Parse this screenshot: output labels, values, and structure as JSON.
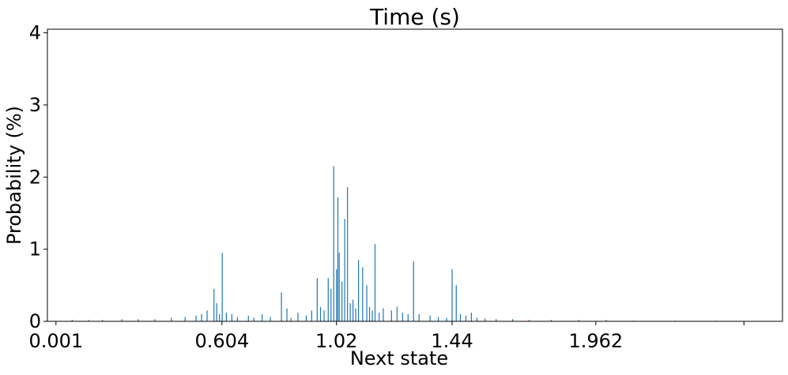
{
  "chart_data": {
    "type": "bar",
    "title": "Time (s)",
    "xlabel": "Next state",
    "ylabel": "Probability (%)",
    "ylim": [
      0,
      4.05
    ],
    "yticks": [
      0,
      1,
      2,
      3,
      4
    ],
    "x_tick_labels": [
      "0.001",
      "0.604",
      "1.02",
      "1.44",
      "1.962",
      ""
    ],
    "x_tick_positions": [
      0.001,
      0.604,
      1.02,
      1.44,
      1.962,
      2.5
    ],
    "xlim": [
      -0.03,
      2.64
    ],
    "bar_color": "#1f77b4",
    "grid": false,
    "legend": "none",
    "series": [
      {
        "x": [
          0.06,
          0.12,
          0.17,
          0.24,
          0.3,
          0.36,
          0.42,
          0.47,
          0.51,
          0.53,
          0.55,
          0.575,
          0.585,
          0.595,
          0.605,
          0.62,
          0.64,
          0.66,
          0.7,
          0.72,
          0.75,
          0.78,
          0.82,
          0.84,
          0.855,
          0.88,
          0.91,
          0.93,
          0.95,
          0.962,
          0.975,
          0.99,
          1.0,
          1.01,
          1.02,
          1.025,
          1.03,
          1.04,
          1.05,
          1.06,
          1.07,
          1.08,
          1.09,
          1.1,
          1.115,
          1.13,
          1.14,
          1.15,
          1.16,
          1.175,
          1.19,
          1.22,
          1.24,
          1.26,
          1.28,
          1.3,
          1.32,
          1.36,
          1.39,
          1.42,
          1.44,
          1.455,
          1.47,
          1.49,
          1.51,
          1.53,
          1.56,
          1.6,
          1.66,
          1.72,
          1.8,
          1.9,
          2.0,
          2.1,
          2.25,
          2.4
        ],
        "values": [
          0.02,
          0.02,
          0.02,
          0.03,
          0.03,
          0.03,
          0.05,
          0.06,
          0.08,
          0.1,
          0.15,
          0.45,
          0.25,
          0.1,
          0.95,
          0.12,
          0.1,
          0.06,
          0.08,
          0.05,
          0.1,
          0.06,
          0.4,
          0.18,
          0.05,
          0.12,
          0.08,
          0.15,
          0.6,
          0.2,
          0.15,
          0.6,
          0.45,
          2.15,
          0.72,
          1.72,
          0.95,
          0.55,
          1.42,
          1.86,
          0.25,
          0.3,
          0.18,
          0.85,
          0.75,
          0.5,
          0.2,
          0.15,
          1.07,
          0.12,
          0.18,
          0.15,
          0.2,
          0.12,
          0.1,
          0.83,
          0.1,
          0.08,
          0.06,
          0.05,
          0.72,
          0.5,
          0.1,
          0.08,
          0.12,
          0.05,
          0.04,
          0.03,
          0.03,
          0.02,
          0.02,
          0.02,
          0.02,
          0.01,
          0.01,
          0.01
        ]
      }
    ]
  }
}
